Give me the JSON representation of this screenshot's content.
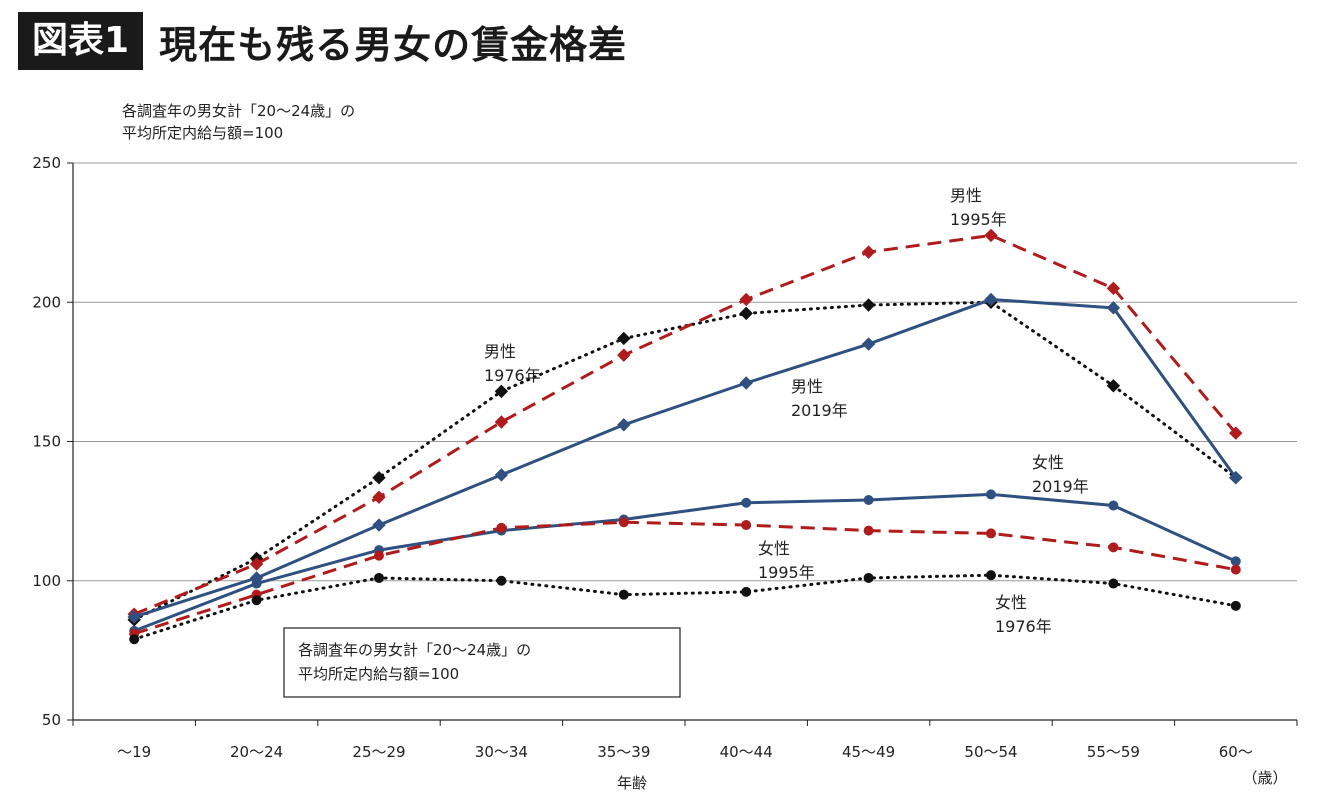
{
  "header": {
    "badge": "図表1",
    "title": "現在も残る男女の賃金格差"
  },
  "chart_data": {
    "type": "line",
    "note_lines": [
      "各調査年の男女計「20～24歳」の",
      "平均所定内給与額=100"
    ],
    "xlabel": "年齢",
    "x_unit": "（歳）",
    "categories": [
      "～19",
      "20～24",
      "25～29",
      "30～34",
      "35～39",
      "40～44",
      "45～49",
      "50～54",
      "55～59",
      "60～"
    ],
    "ylim": [
      50,
      250
    ],
    "yticks": [
      50,
      100,
      150,
      200,
      250
    ],
    "grid": true,
    "series": [
      {
        "label_lines": [
          "男性",
          "1976年"
        ],
        "color": "#111111",
        "style": "dotted",
        "marker": "diamond",
        "values": [
          86,
          108,
          137,
          168,
          187,
          196,
          199,
          200,
          170,
          137
        ]
      },
      {
        "label_lines": [
          "男性",
          "1995年"
        ],
        "color": "#b01c1c",
        "style": "dashed",
        "marker": "diamond",
        "values": [
          88,
          106,
          130,
          157,
          181,
          201,
          218,
          224,
          205,
          153
        ]
      },
      {
        "label_lines": [
          "男性",
          "2019年"
        ],
        "color": "#2f5080",
        "style": "solid",
        "marker": "diamond",
        "values": [
          87,
          101,
          120,
          138,
          156,
          171,
          185,
          201,
          198,
          137
        ]
      },
      {
        "label_lines": [
          "女性",
          "2019年"
        ],
        "color": "#2f5080",
        "style": "solid",
        "marker": "circle",
        "values": [
          82,
          99,
          111,
          118,
          122,
          128,
          129,
          131,
          127,
          107
        ]
      },
      {
        "label_lines": [
          "女性",
          "1995年"
        ],
        "color": "#b01c1c",
        "style": "dashed",
        "marker": "circle",
        "values": [
          81,
          95,
          109,
          119,
          121,
          120,
          118,
          117,
          112,
          104
        ]
      },
      {
        "label_lines": [
          "女性",
          "1976年"
        ],
        "color": "#111111",
        "style": "dotted",
        "marker": "circle",
        "values": [
          79,
          93,
          101,
          100,
          95,
          96,
          101,
          102,
          99,
          91
        ]
      }
    ]
  }
}
